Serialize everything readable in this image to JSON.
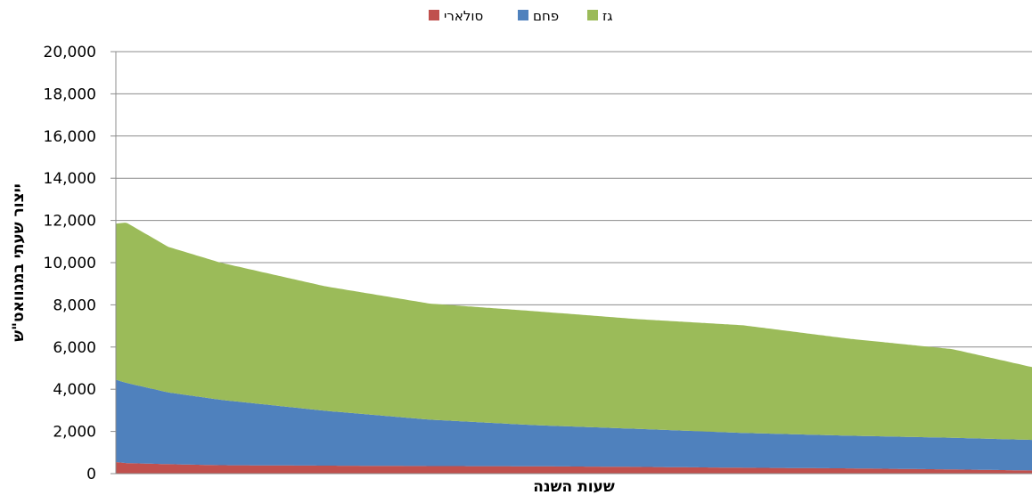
{
  "chart_data": {
    "type": "area",
    "stacked": true,
    "title": "",
    "xlabel": "שעות השנה",
    "ylabel": "ייצור שעתי במגוואט\"ש",
    "ylim": [
      0,
      20000
    ],
    "xlim": [
      0,
      8760
    ],
    "y_ticks": [
      "0",
      "2,000",
      "4,000",
      "6,000",
      "8,000",
      "10,000",
      "12,000",
      "14,000",
      "16,000",
      "18,000",
      "20,000"
    ],
    "grid": true,
    "legend_position": "top-center",
    "sorted_by_total_descending": true,
    "series": [
      {
        "name": "סולארי",
        "color": "#C0504D",
        "x": [
          0,
          100,
          500,
          1000,
          2000,
          3000,
          4000,
          5000,
          6000,
          7000,
          8000,
          8760
        ],
        "values": [
          550,
          500,
          450,
          400,
          380,
          360,
          350,
          320,
          280,
          250,
          200,
          150
        ]
      },
      {
        "name": "פחם",
        "color": "#4F81BD",
        "x": [
          0,
          100,
          500,
          1000,
          2000,
          3000,
          4000,
          5000,
          6000,
          7000,
          8000,
          8760
        ],
        "values": [
          3900,
          3800,
          3400,
          3100,
          2600,
          2200,
          1950,
          1800,
          1650,
          1550,
          1500,
          1450
        ]
      },
      {
        "name": "גז",
        "color": "#9BBB59",
        "x": [
          0,
          100,
          500,
          1000,
          2000,
          3000,
          4000,
          5000,
          6000,
          7000,
          8000,
          8760
        ],
        "values": [
          7400,
          7600,
          6900,
          6500,
          5900,
          5500,
          5400,
          5200,
          5100,
          4600,
          4200,
          3450
        ]
      }
    ]
  }
}
